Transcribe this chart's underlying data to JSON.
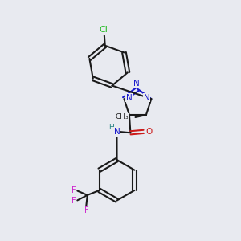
{
  "bg_color": "#e8eaf0",
  "bond_color": "#1a1a1a",
  "n_color": "#1a1acc",
  "o_color": "#cc1a1a",
  "cl_color": "#22bb22",
  "f_color": "#cc22cc",
  "h_color": "#208080",
  "bond_lw": 1.5,
  "font_size": 7.5,
  "xlim": [
    0,
    10
  ],
  "ylim": [
    0,
    10
  ]
}
